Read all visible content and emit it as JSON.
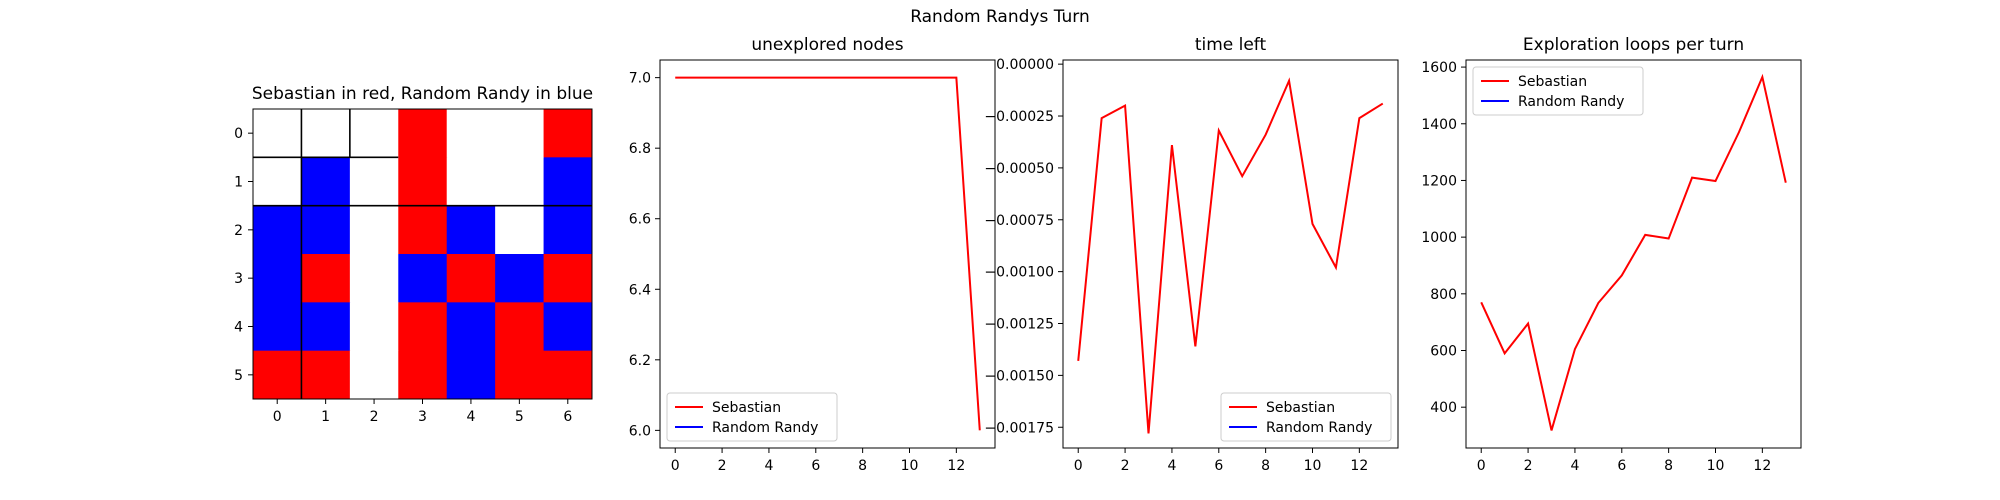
{
  "suptitle": "Random Randys Turn",
  "colors": {
    "sebastian": "#ff0000",
    "randy": "#0000ff",
    "empty": "#ffffff"
  },
  "chart_data": [
    {
      "type": "heatmap",
      "title": "Sebastian in red, Random Randy in blue",
      "xticks": [
        "0",
        "1",
        "2",
        "3",
        "4",
        "5",
        "6"
      ],
      "yticks": [
        "0",
        "1",
        "2",
        "3",
        "4",
        "5"
      ],
      "legend_codes": {
        "0": "empty",
        "1": "Sebastian",
        "2": "Random Randy"
      },
      "grid": [
        [
          0,
          0,
          0,
          1,
          0,
          0,
          1
        ],
        [
          0,
          2,
          0,
          1,
          0,
          0,
          2
        ],
        [
          2,
          2,
          0,
          1,
          2,
          0,
          2
        ],
        [
          2,
          1,
          0,
          2,
          1,
          2,
          1
        ],
        [
          2,
          2,
          0,
          1,
          2,
          1,
          2
        ],
        [
          1,
          1,
          0,
          1,
          2,
          1,
          1
        ]
      ]
    },
    {
      "type": "line",
      "title": "unexplored nodes",
      "xlim": [
        -0.65,
        13.65
      ],
      "ylim": [
        5.95,
        7.05
      ],
      "xticks": [
        "0",
        "2",
        "4",
        "6",
        "8",
        "10",
        "12"
      ],
      "yticks": [
        "6.0",
        "6.2",
        "6.4",
        "6.6",
        "6.8",
        "7.0"
      ],
      "legend": "lower-left",
      "series": [
        {
          "name": "Sebastian",
          "color": "#ff0000",
          "x": [
            0,
            1,
            2,
            3,
            4,
            5,
            6,
            7,
            8,
            9,
            10,
            11,
            12,
            13
          ],
          "y": [
            7,
            7,
            7,
            7,
            7,
            7,
            7,
            7,
            7,
            7,
            7,
            7,
            7,
            6
          ]
        },
        {
          "name": "Random Randy",
          "color": "#0000ff",
          "x": [],
          "y": []
        }
      ]
    },
    {
      "type": "line",
      "title": "time left",
      "xlim": [
        -0.65,
        13.65
      ],
      "ylim": [
        -0.00185,
        2e-05
      ],
      "xticks": [
        "0",
        "2",
        "4",
        "6",
        "8",
        "10",
        "12"
      ],
      "yticks": [
        "0.00000",
        "−0.00025",
        "−0.00050",
        "−0.00075",
        "−0.00100",
        "−0.00125",
        "−0.00150",
        "−0.00175"
      ],
      "legend": "lower-right",
      "series": [
        {
          "name": "Sebastian",
          "color": "#ff0000",
          "x": [
            0,
            1,
            2,
            3,
            4,
            5,
            6,
            7,
            8,
            9,
            10,
            11,
            12,
            13
          ],
          "y": [
            -0.00143,
            -0.00026,
            -0.0002,
            -0.00178,
            -0.00039,
            -0.00136,
            -0.00032,
            -0.00054,
            -0.00034,
            -8e-05,
            -0.00077,
            -0.00098,
            -0.00026,
            -0.00019
          ]
        },
        {
          "name": "Random Randy",
          "color": "#0000ff",
          "x": [],
          "y": []
        }
      ]
    },
    {
      "type": "line",
      "title": "Exploration loops per turn",
      "xlim": [
        -0.65,
        13.65
      ],
      "ylim": [
        256,
        1625
      ],
      "xticks": [
        "0",
        "2",
        "4",
        "6",
        "8",
        "10",
        "12"
      ],
      "yticks": [
        "400",
        "600",
        "800",
        "1000",
        "1200",
        "1400",
        "1600"
      ],
      "legend": "upper-left",
      "series": [
        {
          "name": "Sebastian",
          "color": "#ff0000",
          "x": [
            0,
            1,
            2,
            3,
            4,
            5,
            6,
            7,
            8,
            9,
            10,
            11,
            12,
            13
          ],
          "y": [
            770,
            590,
            695,
            318,
            605,
            768,
            865,
            1008,
            995,
            1210,
            1198,
            1370,
            1565,
            1192
          ]
        },
        {
          "name": "Random Randy",
          "color": "#0000ff",
          "x": [],
          "y": []
        }
      ]
    }
  ]
}
